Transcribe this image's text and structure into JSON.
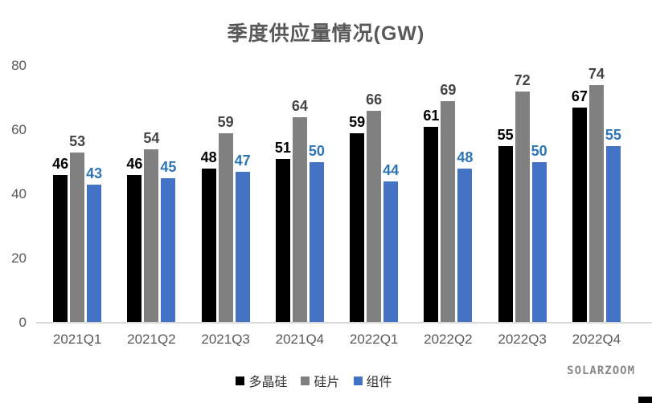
{
  "title": "季度供应量情况(GW)",
  "watermark": "SOLARZOOM",
  "colors": {
    "title_text": "#595959",
    "axis_text": "#595959",
    "axis_line": "#d9d9d9",
    "background": "#ffffff",
    "legend_text": "#333333"
  },
  "chart_data": {
    "type": "bar",
    "title": "季度供应量情况(GW)",
    "xlabel": "",
    "ylabel": "",
    "categories": [
      "2021Q1",
      "2021Q2",
      "2021Q3",
      "2021Q4",
      "2022Q1",
      "2022Q2",
      "2022Q3",
      "2022Q4"
    ],
    "series": [
      {
        "name": "多晶硅",
        "color": "#000000",
        "label_color": "#000000",
        "values": [
          46,
          46,
          48,
          51,
          59,
          61,
          55,
          67
        ]
      },
      {
        "name": "硅片",
        "color": "#808080",
        "label_color": "#444444",
        "values": [
          53,
          54,
          59,
          64,
          66,
          69,
          72,
          74
        ]
      },
      {
        "name": "组件",
        "color": "#4472c4",
        "label_color": "#2e75b6",
        "values": [
          43,
          45,
          47,
          50,
          44,
          48,
          50,
          55
        ]
      }
    ],
    "ylim": [
      0,
      80
    ],
    "yticks": [
      0,
      20,
      40,
      60,
      80
    ],
    "grid": false,
    "data_labels": true,
    "legend_position": "bottom"
  }
}
